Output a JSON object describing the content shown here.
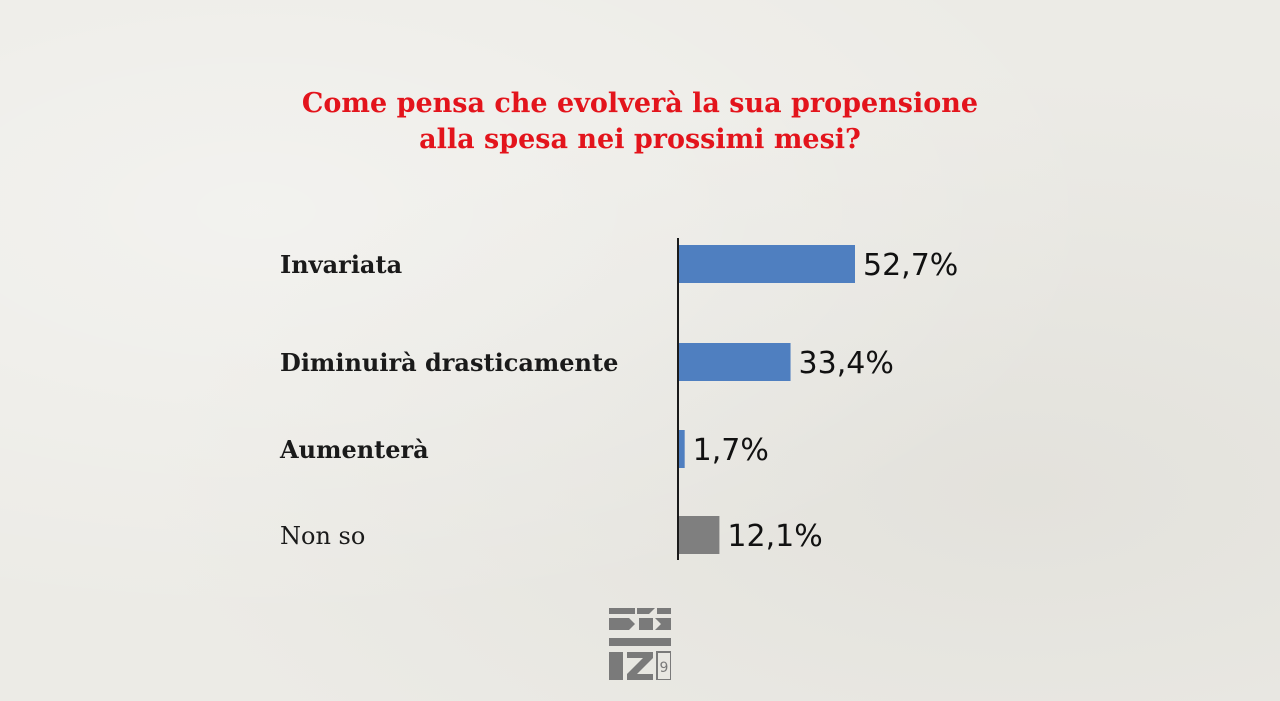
{
  "chart_data": {
    "type": "bar",
    "orientation": "horizontal",
    "title_lines": [
      "Come pensa che evolverà la sua propensione",
      "alla spesa nei prossimi mesi?"
    ],
    "categories": [
      "Invariata",
      "Diminuirà drasticamente",
      "Aumenterà",
      "Non so"
    ],
    "values": [
      52.7,
      33.4,
      1.7,
      12.1
    ],
    "value_labels": [
      "52,7%",
      "33,4%",
      "1,7%",
      "12,1%"
    ],
    "bold_categories": [
      true,
      true,
      true,
      false
    ],
    "colors": [
      "#4f7fc0",
      "#4f7fc0",
      "#4f7fc0",
      "#7f7f7f"
    ],
    "xlim": [
      0,
      100
    ],
    "grid": false,
    "legend": "none"
  },
  "brand": {
    "logo_icon": "izi-logo-icon"
  }
}
